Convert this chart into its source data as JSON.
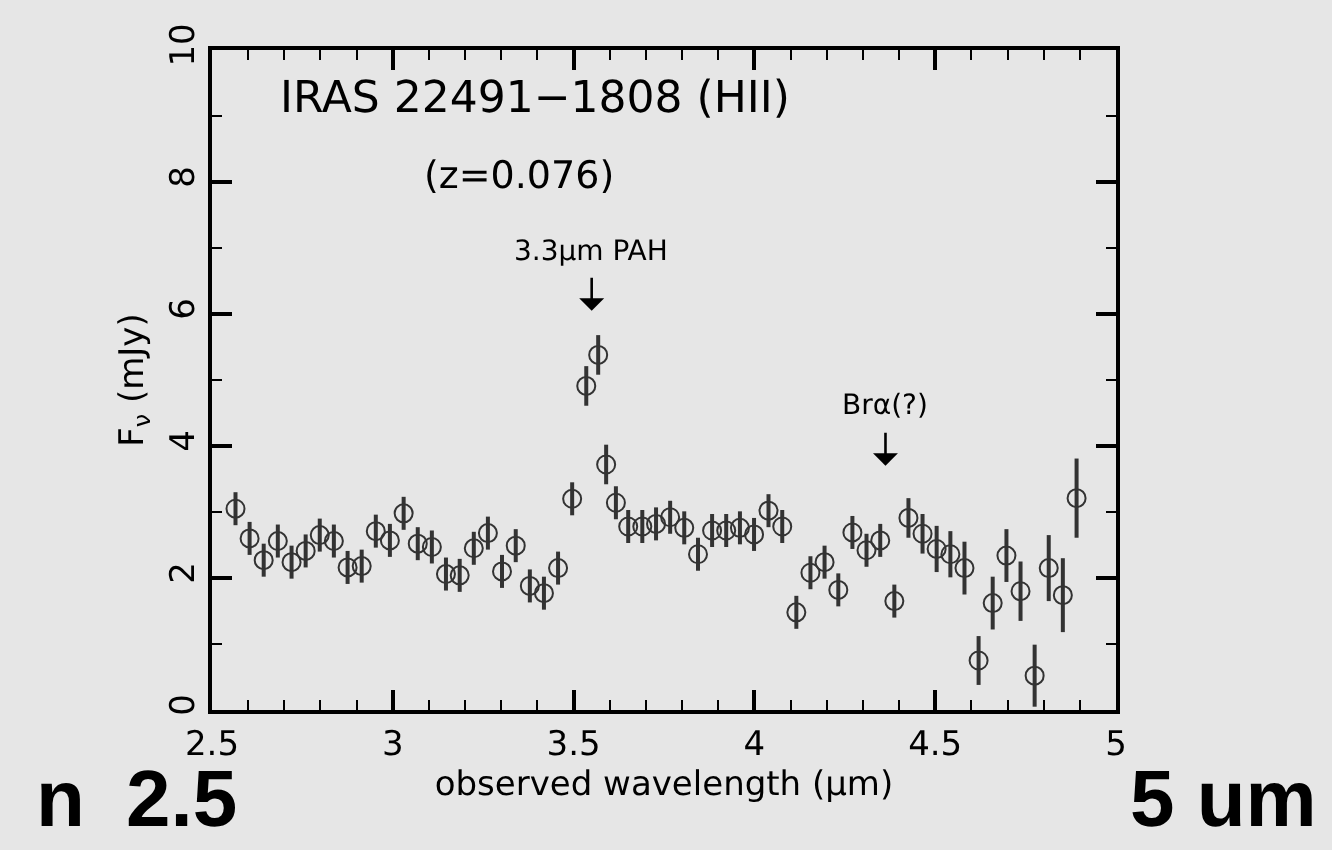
{
  "chart_data": {
    "type": "scatter",
    "title": "IRAS 22491−1808 (HII)",
    "subtitle": "(z=0.076)",
    "xlabel": "observed wavelength (μm)",
    "ylabel": "F$_{ν}$ (mJy)",
    "x": [
      2.565,
      2.604,
      2.643,
      2.682,
      2.72,
      2.759,
      2.798,
      2.837,
      2.875,
      2.914,
      2.953,
      2.992,
      3.03,
      3.069,
      3.108,
      3.147,
      3.185,
      3.224,
      3.263,
      3.302,
      3.34,
      3.379,
      3.418,
      3.457,
      3.496,
      3.535,
      3.568,
      3.59,
      3.617,
      3.651,
      3.69,
      3.728,
      3.767,
      3.806,
      3.844,
      3.883,
      3.922,
      3.96,
      3.999,
      4.039,
      4.077,
      4.116,
      4.155,
      4.194,
      4.232,
      4.271,
      4.31,
      4.348,
      4.387,
      4.426,
      4.465,
      4.504,
      4.542,
      4.581,
      4.62,
      4.659,
      4.697,
      4.736,
      4.775,
      4.814,
      4.853,
      4.891
    ],
    "values": [
      3.05,
      2.6,
      2.27,
      2.56,
      2.24,
      2.41,
      2.65,
      2.56,
      2.16,
      2.18,
      2.71,
      2.57,
      2.98,
      2.52,
      2.47,
      2.06,
      2.04,
      2.45,
      2.68,
      2.1,
      2.49,
      1.88,
      1.77,
      2.15,
      3.2,
      4.91,
      5.38,
      3.72,
      3.14,
      2.78,
      2.78,
      2.82,
      2.92,
      2.76,
      2.36,
      2.72,
      2.72,
      2.76,
      2.66,
      3.02,
      2.78,
      1.48,
      2.08,
      2.24,
      1.82,
      2.69,
      2.42,
      2.57,
      1.65,
      2.91,
      2.67,
      2.44,
      2.36,
      2.15,
      0.75,
      1.62,
      2.34,
      1.8,
      0.52,
      2.15,
      1.74,
      3.21
    ],
    "errors": [
      0.25,
      0.25,
      0.25,
      0.25,
      0.25,
      0.25,
      0.25,
      0.25,
      0.25,
      0.25,
      0.25,
      0.25,
      0.25,
      0.25,
      0.25,
      0.25,
      0.25,
      0.25,
      0.25,
      0.25,
      0.25,
      0.25,
      0.25,
      0.25,
      0.25,
      0.3,
      0.3,
      0.3,
      0.25,
      0.25,
      0.25,
      0.25,
      0.25,
      0.25,
      0.25,
      0.25,
      0.25,
      0.25,
      0.25,
      0.25,
      0.25,
      0.25,
      0.25,
      0.25,
      0.25,
      0.25,
      0.25,
      0.25,
      0.25,
      0.3,
      0.3,
      0.35,
      0.35,
      0.4,
      0.37,
      0.4,
      0.4,
      0.45,
      0.47,
      0.5,
      0.56,
      0.6
    ],
    "color": "#333333",
    "marker": "circle",
    "xlim": [
      2.5,
      5
    ],
    "xticks": [
      {
        "value": 2.5,
        "label": "2.5"
      },
      3,
      3.5,
      4,
      4.5,
      5
    ],
    "ylim": [
      0,
      10
    ],
    "yticks": [
      0,
      2,
      4,
      6,
      8,
      10
    ],
    "annotations": [
      "3.3μm PAH",
      "Brα(?)",
      "n",
      "2.5",
      "5 um"
    ],
    "grid": false,
    "legend": false
  }
}
